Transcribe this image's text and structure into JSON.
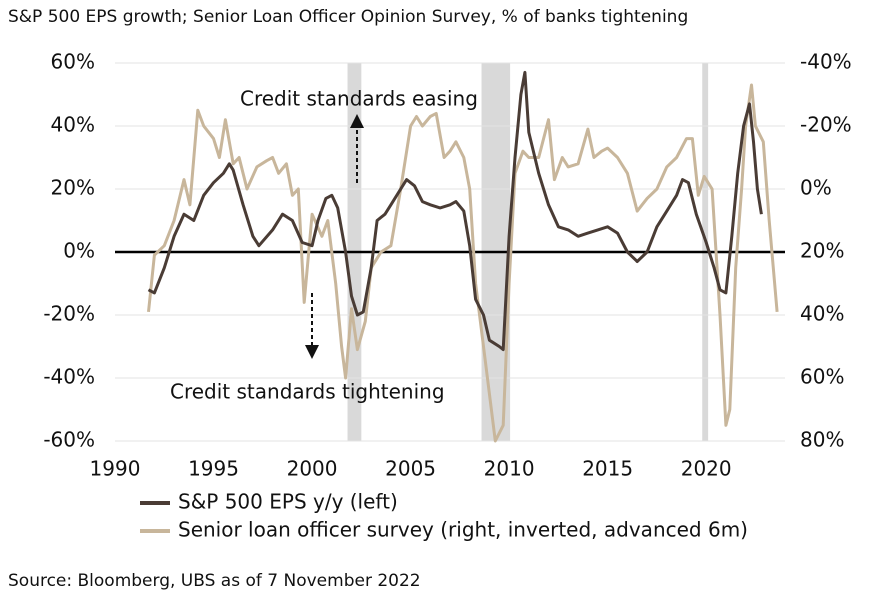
{
  "chart_data": {
    "type": "line",
    "title": "S&P 500 EPS growth; Senior Loan Officer Opinion Survey, % of banks tightening",
    "source": "Source: Bloomberg, UBS as of 7 November 2022",
    "annotations": [
      "Credit standards easing",
      "Credit standards tightening"
    ],
    "xlim": [
      1990,
      2024
    ],
    "xticks": [
      1990,
      1995,
      2000,
      2005,
      2010,
      2015,
      2020
    ],
    "ylim": [
      -60,
      60
    ],
    "yticks": [
      {
        "value": -60,
        "label": "-60%"
      },
      {
        "value": -40,
        "label": "-40%"
      },
      {
        "value": -20,
        "label": "-20%"
      },
      {
        "value": 0,
        "label": "0%"
      },
      {
        "value": 20,
        "label": "20%"
      },
      {
        "value": 40,
        "label": "40%"
      },
      {
        "value": 60,
        "label": "60%"
      }
    ],
    "y2lim": [
      -40,
      80
    ],
    "y2_inverted": true,
    "y2ticks": [
      {
        "value": -40,
        "label": "-40%"
      },
      {
        "value": -20,
        "label": "-20%"
      },
      {
        "value": 0,
        "label": "0%"
      },
      {
        "value": 20,
        "label": "20%"
      },
      {
        "value": 40,
        "label": "40%"
      },
      {
        "value": 60,
        "label": "60%"
      },
      {
        "value": 80,
        "label": "80%"
      }
    ],
    "grid": true,
    "shade_color": "#d9d9d9",
    "shaded_periods": [
      [
        2001.8,
        2002.5
      ],
      [
        2008.6,
        2010.05
      ],
      [
        2019.8,
        2020.1
      ]
    ],
    "series": [
      {
        "name": "S&P 500 EPS y/y (left)",
        "color": "#4a3c35",
        "axis": "y",
        "x": [
          1991.7,
          1992,
          1992.5,
          1993,
          1993.5,
          1994,
          1994.5,
          1995,
          1995.5,
          1995.8,
          1996,
          1996.5,
          1997,
          1997.3,
          1998,
          1998.5,
          1999,
          1999.5,
          2000,
          2000.3,
          2000.7,
          2001,
          2001.3,
          2001.7,
          2002,
          2002.3,
          2002.6,
          2003,
          2003.3,
          2003.7,
          2004,
          2004.5,
          2004.8,
          2005.2,
          2005.6,
          2006,
          2006.5,
          2007,
          2007.3,
          2007.7,
          2008,
          2008.3,
          2008.7,
          2009,
          2009.5,
          2009.7,
          2010,
          2010.3,
          2010.6,
          2010.8,
          2011,
          2011.5,
          2012,
          2012.5,
          2013,
          2013.5,
          2014,
          2014.5,
          2015,
          2015.5,
          2016,
          2016.5,
          2017,
          2017.5,
          2018,
          2018.5,
          2018.8,
          2019.1,
          2019.5,
          2020,
          2020.4,
          2020.7,
          2021,
          2021.3,
          2021.6,
          2021.9,
          2022.2,
          2022.4,
          2022.6,
          2022.8
        ],
        "values": [
          -12,
          -13,
          -5,
          5,
          12,
          10,
          18,
          22,
          25,
          28,
          26,
          15,
          5,
          2,
          7,
          12,
          10,
          3,
          2,
          10,
          17,
          18,
          14,
          0,
          -14,
          -20,
          -19,
          -5,
          10,
          12,
          15,
          20,
          23,
          21,
          16,
          15,
          14,
          15,
          16,
          13,
          2,
          -15,
          -20,
          -28,
          -30,
          -31,
          5,
          30,
          50,
          57,
          38,
          25,
          15,
          8,
          7,
          5,
          6,
          7,
          8,
          6,
          0,
          -3,
          0,
          8,
          13,
          18,
          23,
          22,
          12,
          3,
          -5,
          -12,
          -13,
          5,
          25,
          40,
          47,
          35,
          20,
          12
        ]
      },
      {
        "name": "Senior loan officer survey (right, inverted, advanced 6m)",
        "color": "#c8b69b",
        "axis": "y2",
        "x": [
          1991.7,
          1992,
          1992.5,
          1993,
          1993.5,
          1993.8,
          1994.2,
          1994.5,
          1995,
          1995.3,
          1995.6,
          1996,
          1996.3,
          1996.7,
          1997.2,
          1997.7,
          1998,
          1998.3,
          1998.7,
          1999,
          1999.3,
          1999.6,
          2000,
          2000.5,
          2000.8,
          2001.2,
          2001.5,
          2001.7,
          2002,
          2002.3,
          2002.7,
          2003,
          2003.5,
          2004,
          2004.5,
          2005,
          2005.3,
          2005.6,
          2006,
          2006.3,
          2006.7,
          2007,
          2007.3,
          2007.7,
          2008,
          2008.3,
          2008.7,
          2009,
          2009.3,
          2009.7,
          2010,
          2010.3,
          2010.7,
          2011,
          2011.5,
          2012,
          2012.3,
          2012.7,
          2013,
          2013.5,
          2014,
          2014.3,
          2014.7,
          2015,
          2015.5,
          2016,
          2016.5,
          2017,
          2017.5,
          2018,
          2018.5,
          2019,
          2019.3,
          2019.6,
          2019.9,
          2020.3,
          2020.7,
          2021,
          2021.2,
          2021.5,
          2021.8,
          2022,
          2022.3,
          2022.5,
          2022.9,
          2023.2,
          2023.6
        ],
        "values": [
          39,
          21,
          18,
          10,
          -3,
          5,
          -25,
          -20,
          -16,
          -10,
          -22,
          -8,
          -10,
          0,
          -7,
          -9,
          -10,
          -5,
          -8,
          2,
          0,
          36,
          8,
          15,
          10,
          30,
          50,
          60,
          38,
          51,
          42,
          25,
          20,
          18,
          0,
          -20,
          -23,
          -20,
          -23,
          -24,
          -10,
          -12,
          -15,
          -10,
          0,
          30,
          50,
          65,
          80,
          75,
          30,
          -5,
          -12,
          -10,
          -10,
          -22,
          -3,
          -10,
          -7,
          -8,
          -19,
          -10,
          -12,
          -13,
          -10,
          -5,
          7,
          3,
          0,
          -7,
          -10,
          -16,
          -16,
          2,
          -4,
          0,
          40,
          75,
          70,
          25,
          0,
          -20,
          -33,
          -20,
          -15,
          10,
          39
        ]
      }
    ]
  }
}
